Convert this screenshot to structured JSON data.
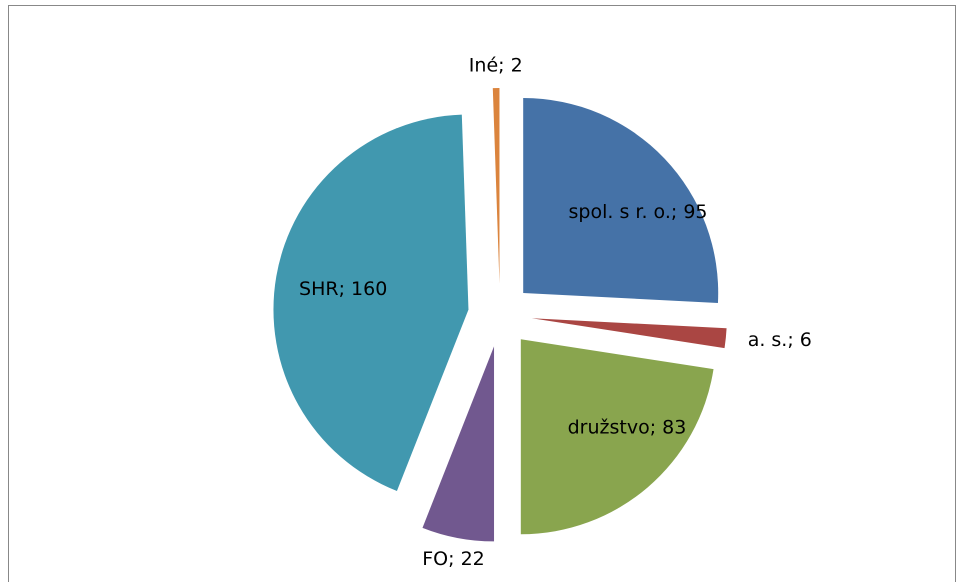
{
  "chart_data": {
    "type": "pie",
    "categories": [
      "spol. s r. o.",
      "a. s.",
      "družstvo",
      "FO",
      "SHR",
      "Iné"
    ],
    "values": [
      95,
      6,
      83,
      22,
      160,
      2
    ],
    "value_labels": [
      "spol. s r. o.; 95",
      "a. s.; 6",
      "družstvo; 83",
      "FO; 22",
      "SHR; 160",
      "Iné; 2"
    ],
    "colors": [
      "#4572a7",
      "#aa4643",
      "#89a54e",
      "#71588f",
      "#4198af",
      "#db843d"
    ],
    "exploded": true
  }
}
